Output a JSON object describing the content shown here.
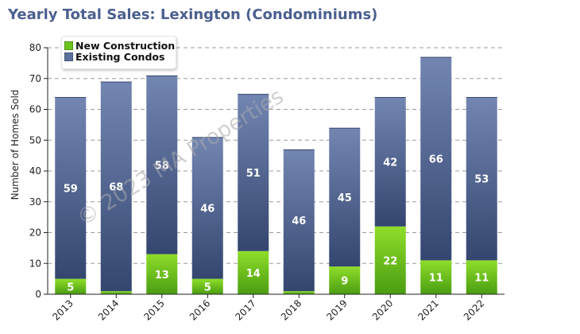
{
  "title": "Yearly Total Sales: Lexington (Condominiums)",
  "watermark": "© 2023 MA Properties",
  "colors": {
    "new_construction": "#6cc51c",
    "existing_condos": "#5b6f9c",
    "title": "#4a5f8f"
  },
  "chart_data": {
    "type": "bar",
    "stacked": true,
    "categories": [
      "2013",
      "2014",
      "2015",
      "2016",
      "2017",
      "2018",
      "2019",
      "2020",
      "2021",
      "2022"
    ],
    "series": [
      {
        "name": "New Construction",
        "values": [
          5,
          1,
          13,
          5,
          14,
          1,
          9,
          22,
          11,
          11
        ]
      },
      {
        "name": "Existing Condos",
        "values": [
          59,
          68,
          58,
          46,
          51,
          46,
          45,
          42,
          66,
          53
        ]
      }
    ],
    "data_labels": {
      "New Construction": [
        "5",
        "",
        "13",
        "5",
        "14",
        "",
        "9",
        "22",
        "11",
        "11"
      ],
      "Existing Condos": [
        "59",
        "68",
        "58",
        "46",
        "51",
        "46",
        "45",
        "42",
        "66",
        "53"
      ]
    },
    "xlabel": "",
    "ylabel": "Number of Homes Sold",
    "ylim": [
      0,
      80
    ],
    "yticks": [
      0,
      10,
      20,
      30,
      40,
      50,
      60,
      70,
      80
    ],
    "grid": true,
    "legend_position": "top-left"
  }
}
